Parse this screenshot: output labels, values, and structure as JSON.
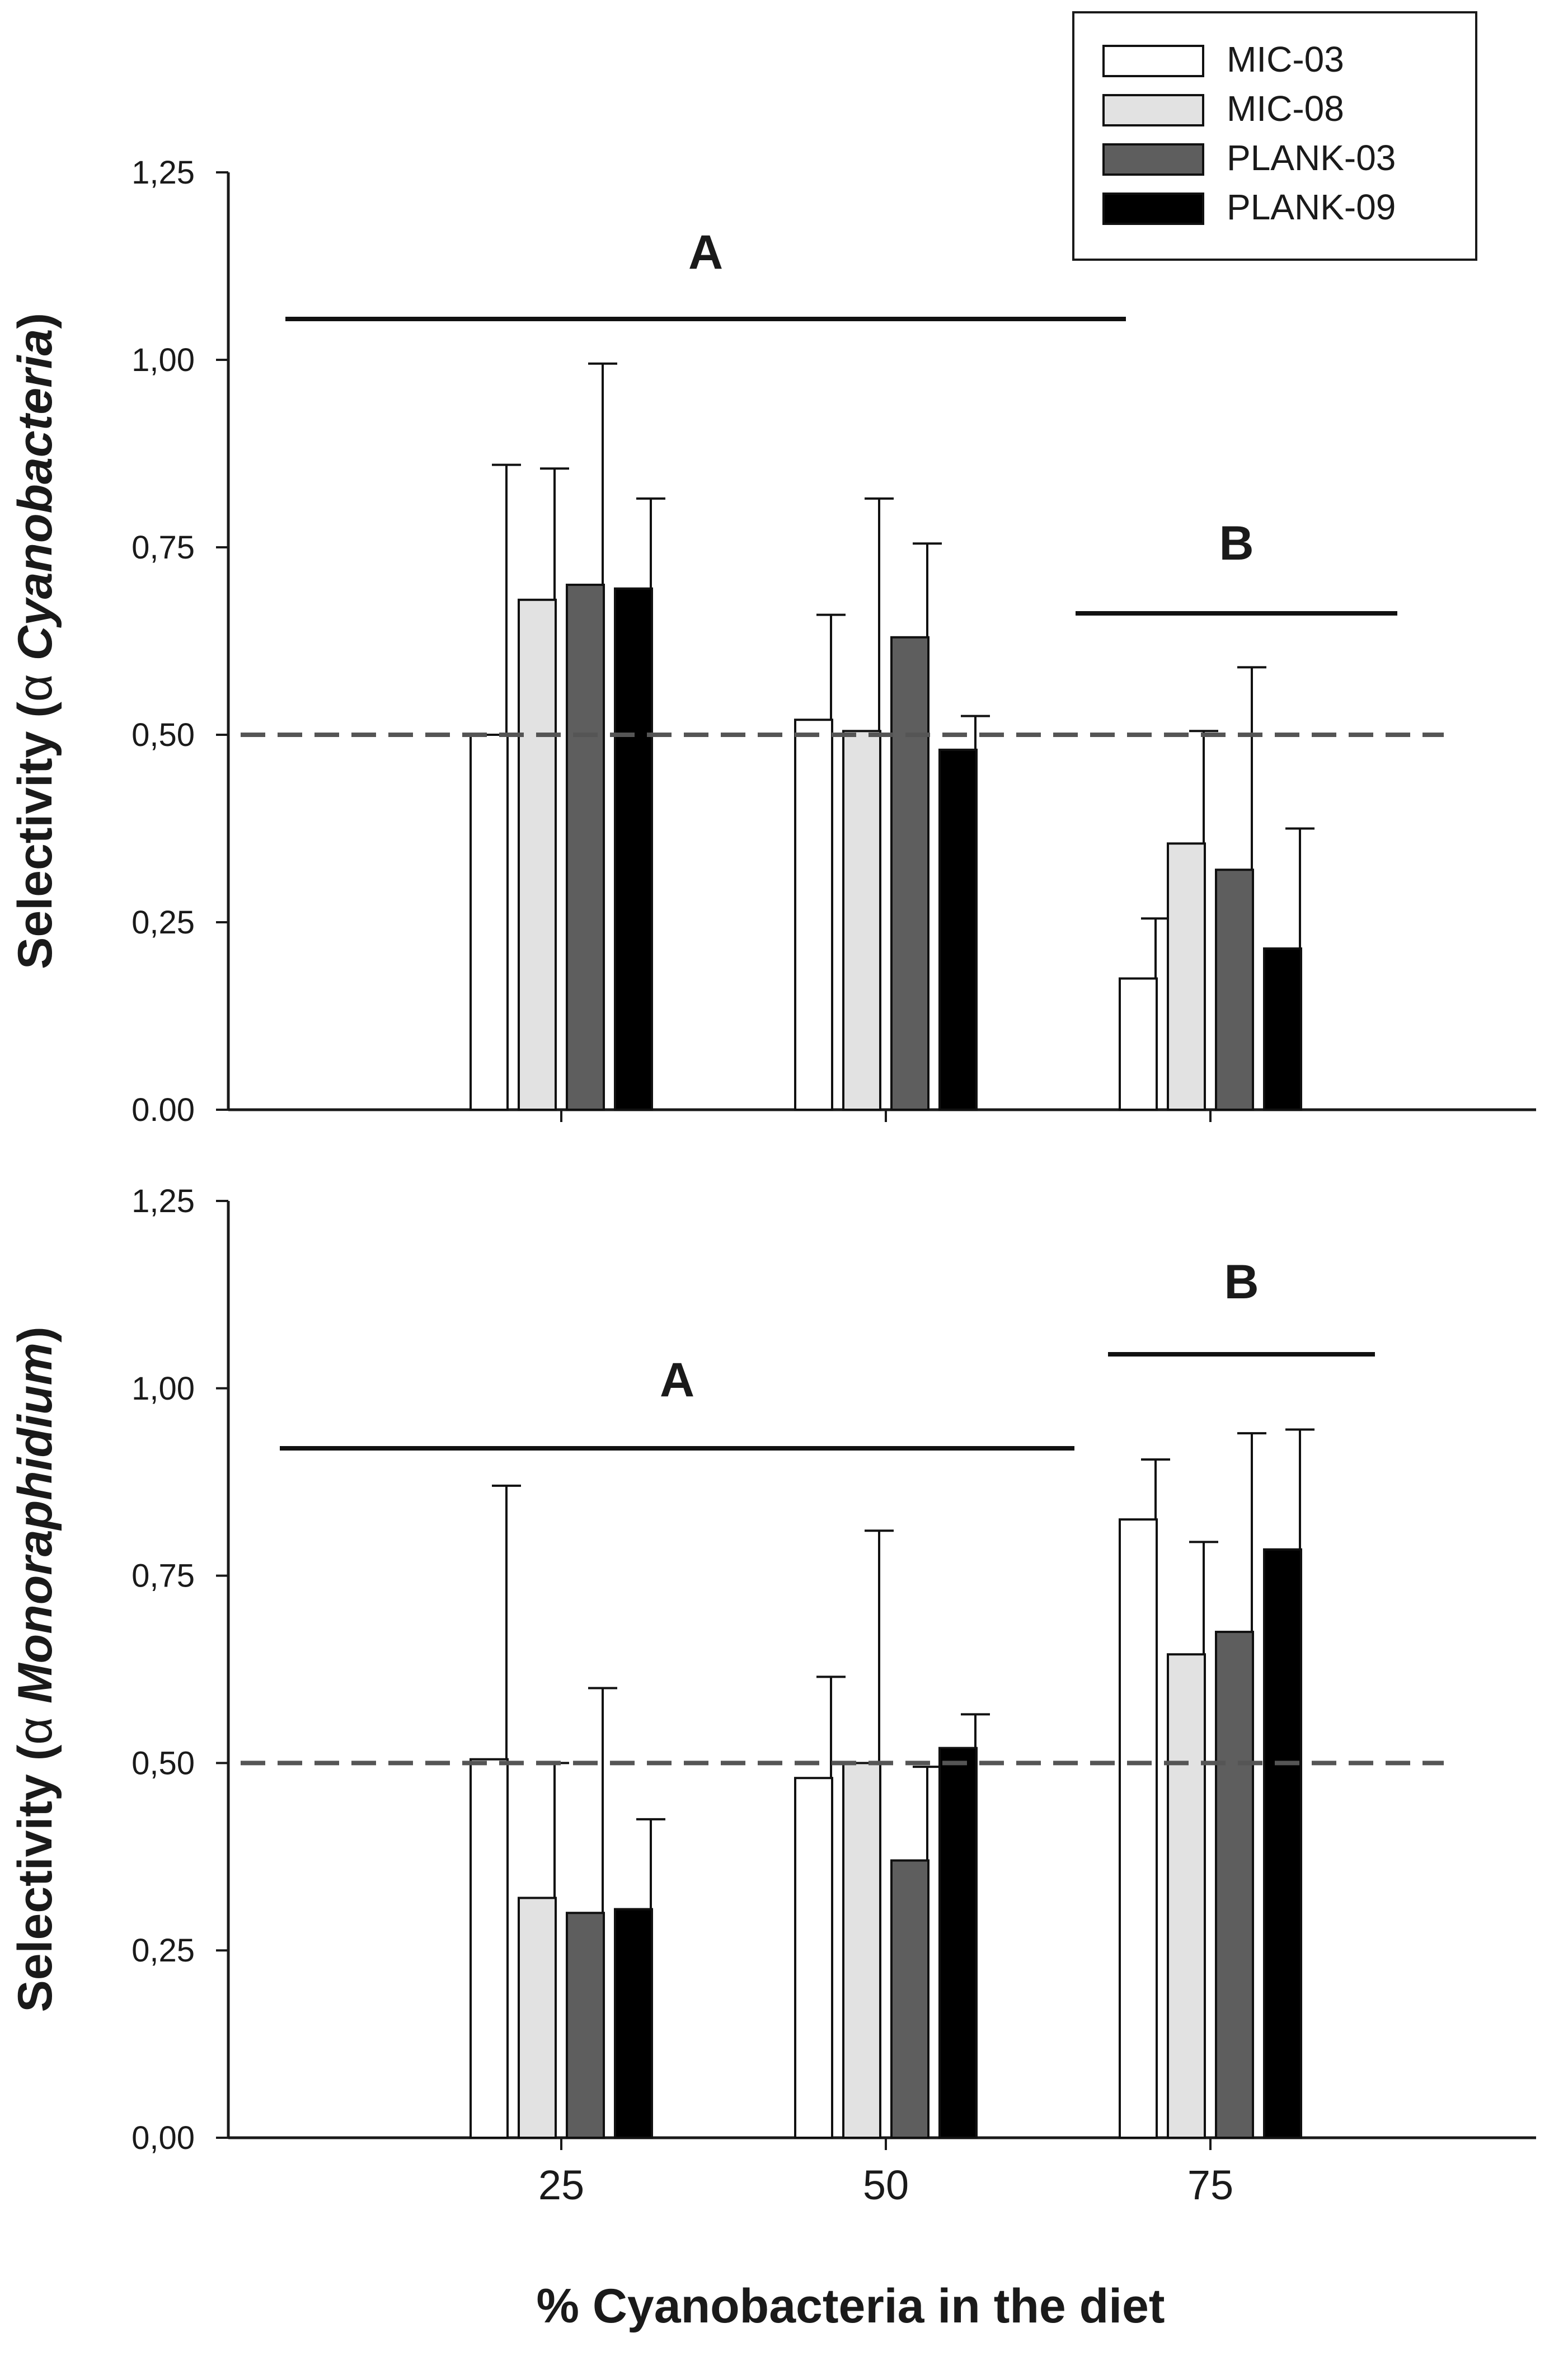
{
  "chart_data": {
    "type": "bar",
    "xlabel": "% Cyanobacteria in the diet",
    "categories": [
      "25",
      "50",
      "75"
    ],
    "legend": {
      "position": "top-right",
      "entries": [
        {
          "name": "MIC-03",
          "color": "#ffffff"
        },
        {
          "name": "MIC-08",
          "color": "#e2e2e2"
        },
        {
          "name": "PLANK-03",
          "color": "#5e5e5e"
        },
        {
          "name": "PLANK-09",
          "color": "#000000"
        }
      ]
    },
    "panels": [
      {
        "ylabel_prefix": "Selectivity (",
        "ylabel_alpha": "α",
        "ylabel_species": "Cyanobacteria",
        "ylabel_suffix": ")",
        "ylim": [
          0,
          1.25
        ],
        "yticks": [
          "0.00",
          "0,25",
          "0,50",
          "0,75",
          "1,00",
          "1,25"
        ],
        "reference_line": 0.5,
        "series": [
          {
            "name": "MIC-03",
            "values": [
              0.5,
              0.52,
              0.175
            ],
            "errors": [
              0.36,
              0.14,
              0.08
            ]
          },
          {
            "name": "MIC-08",
            "values": [
              0.68,
              0.505,
              0.355
            ],
            "errors": [
              0.175,
              0.31,
              0.15
            ]
          },
          {
            "name": "PLANK-03",
            "values": [
              0.7,
              0.63,
              0.32
            ],
            "errors": [
              0.295,
              0.125,
              0.27
            ]
          },
          {
            "name": "PLANK-09",
            "values": [
              0.695,
              0.48,
              0.215
            ],
            "errors": [
              0.12,
              0.045,
              0.16
            ]
          }
        ],
        "groups": [
          {
            "letter": "A",
            "from": "25",
            "to": "50"
          },
          {
            "letter": "B",
            "from": "75",
            "to": "75"
          }
        ]
      },
      {
        "ylabel_prefix": "Selectivity (",
        "ylabel_alpha": "α",
        "ylabel_species": "Monoraphidium",
        "ylabel_suffix": ")",
        "ylim": [
          0,
          1.25
        ],
        "yticks": [
          "0,00",
          "0,25",
          "0,50",
          "0,75",
          "1,00",
          "1,25"
        ],
        "reference_line": 0.5,
        "series": [
          {
            "name": "MIC-03",
            "values": [
              0.505,
              0.48,
              0.825
            ],
            "errors": [
              0.365,
              0.135,
              0.08
            ]
          },
          {
            "name": "MIC-08",
            "values": [
              0.32,
              0.5,
              0.645
            ],
            "errors": [
              0.18,
              0.31,
              0.15
            ]
          },
          {
            "name": "PLANK-03",
            "values": [
              0.3,
              0.37,
              0.675
            ],
            "errors": [
              0.3,
              0.125,
              0.265
            ]
          },
          {
            "name": "PLANK-09",
            "values": [
              0.305,
              0.52,
              0.785
            ],
            "errors": [
              0.12,
              0.045,
              0.16
            ]
          }
        ],
        "groups": [
          {
            "letter": "A",
            "from": "25",
            "to": "50"
          },
          {
            "letter": "B",
            "from": "75",
            "to": "75"
          }
        ]
      }
    ]
  }
}
